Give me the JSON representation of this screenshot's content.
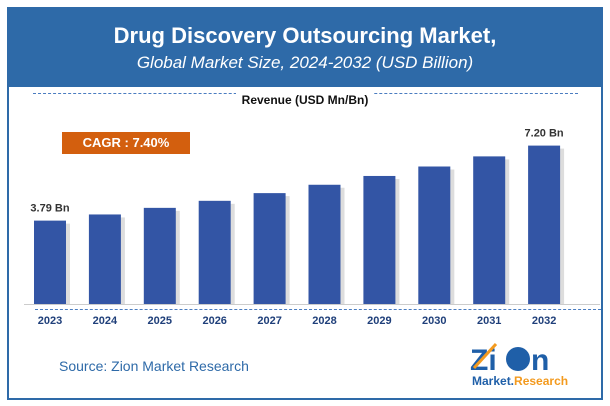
{
  "header": {
    "title": "Drug Discovery Outsourcing Market,",
    "subtitle": "Global Market Size, 2024-2032 (USD Billion)"
  },
  "revenue_label": "Revenue (USD Mn/Bn)",
  "cagr": "CAGR : 7.40%",
  "source": "Source: Zion Market Research",
  "logo": {
    "text_main": "Zion",
    "text_sub1": "Market",
    "text_sub2": "Research"
  },
  "colors": {
    "header": "#2e6aa8",
    "bar": "#3355a5",
    "cagr": "#d35f0e"
  },
  "chart_data": {
    "type": "bar",
    "categories": [
      "2023",
      "2024",
      "2025",
      "2026",
      "2027",
      "2028",
      "2029",
      "2030",
      "2031",
      "2032"
    ],
    "values": [
      3.79,
      4.07,
      4.37,
      4.69,
      5.04,
      5.42,
      5.82,
      6.25,
      6.71,
      7.2
    ],
    "data_labels": {
      "0": "3.79 Bn",
      "9": "7.20 Bn"
    },
    "ylabel": "Revenue (USD Mn/Bn)",
    "grid": false
  }
}
